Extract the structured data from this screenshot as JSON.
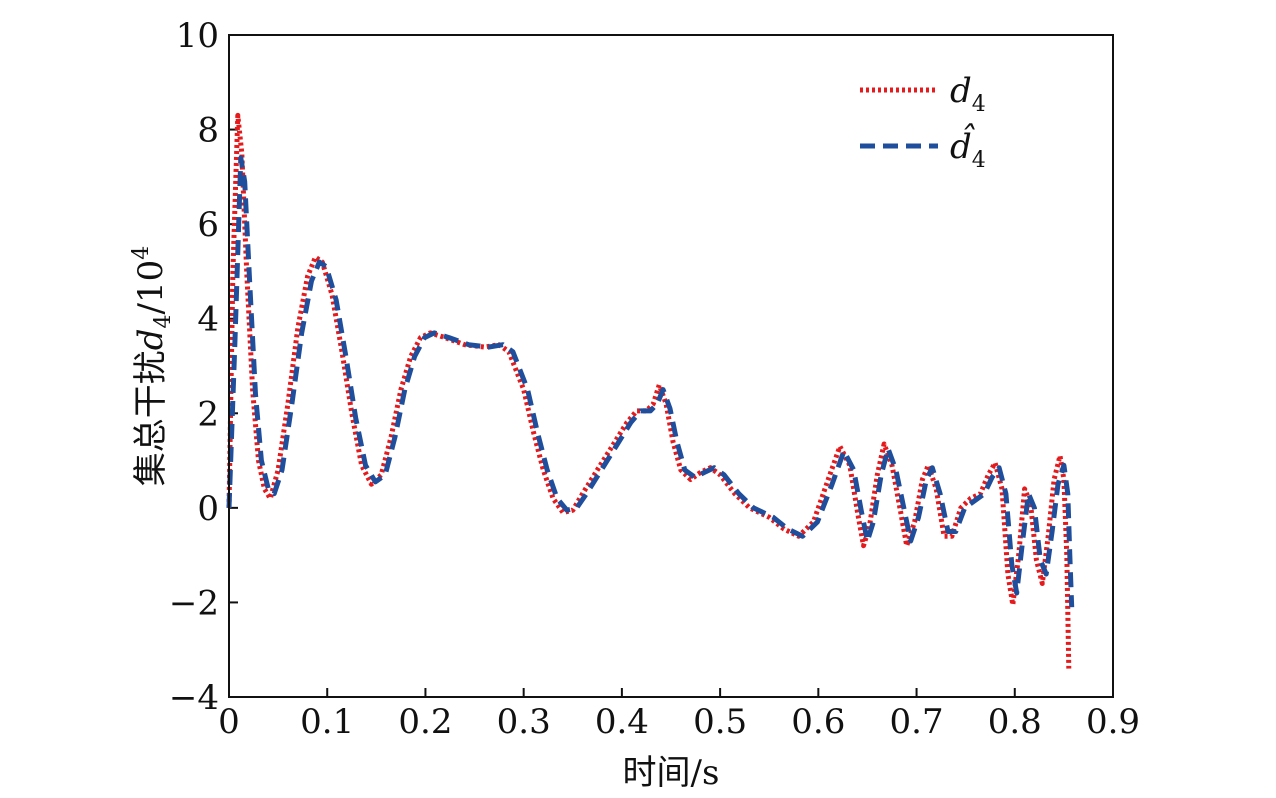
{
  "chart_data": {
    "type": "line",
    "title": "",
    "xlabel": "时间/s",
    "ylabel": {
      "prefix": "集总干扰",
      "symbol": "d",
      "subscript": "4",
      "suffix": "/10",
      "superscript": "4"
    },
    "xlim": [
      0,
      0.9
    ],
    "ylim": [
      -4,
      10
    ],
    "xticks": [
      "0",
      "0.1",
      "0.2",
      "0.3",
      "0.4",
      "0.5",
      "0.6",
      "0.7",
      "0.8",
      "0.9"
    ],
    "yticks": [
      "−4",
      "−2",
      "0",
      "2",
      "4",
      "6",
      "8",
      "10"
    ],
    "xtick_values": [
      0,
      0.1,
      0.2,
      0.3,
      0.4,
      0.5,
      0.6,
      0.7,
      0.8,
      0.9
    ],
    "ytick_values": [
      -4,
      -2,
      0,
      2,
      4,
      6,
      8,
      10
    ],
    "grid": false,
    "legend_position": "top-right",
    "series": [
      {
        "name": "d4",
        "legend_symbol": "d",
        "legend_sub": "4",
        "color": "#e41a1c",
        "style": "dotted",
        "points": [
          [
            0.0,
            0.0
          ],
          [
            0.004,
            5.0
          ],
          [
            0.009,
            8.3
          ],
          [
            0.013,
            7.5
          ],
          [
            0.018,
            5.0
          ],
          [
            0.024,
            2.5
          ],
          [
            0.03,
            1.0
          ],
          [
            0.036,
            0.4
          ],
          [
            0.042,
            0.2
          ],
          [
            0.05,
            0.8
          ],
          [
            0.06,
            2.2
          ],
          [
            0.07,
            3.8
          ],
          [
            0.08,
            4.9
          ],
          [
            0.088,
            5.3
          ],
          [
            0.095,
            5.2
          ],
          [
            0.105,
            4.5
          ],
          [
            0.115,
            3.3
          ],
          [
            0.125,
            2.0
          ],
          [
            0.135,
            0.9
          ],
          [
            0.145,
            0.5
          ],
          [
            0.155,
            0.7
          ],
          [
            0.165,
            1.5
          ],
          [
            0.175,
            2.5
          ],
          [
            0.185,
            3.2
          ],
          [
            0.195,
            3.6
          ],
          [
            0.205,
            3.7
          ],
          [
            0.22,
            3.6
          ],
          [
            0.24,
            3.45
          ],
          [
            0.26,
            3.4
          ],
          [
            0.275,
            3.45
          ],
          [
            0.285,
            3.3
          ],
          [
            0.3,
            2.5
          ],
          [
            0.31,
            1.6
          ],
          [
            0.32,
            0.8
          ],
          [
            0.33,
            0.2
          ],
          [
            0.34,
            -0.1
          ],
          [
            0.35,
            -0.05
          ],
          [
            0.36,
            0.3
          ],
          [
            0.375,
            0.8
          ],
          [
            0.39,
            1.3
          ],
          [
            0.405,
            1.8
          ],
          [
            0.415,
            2.05
          ],
          [
            0.425,
            2.05
          ],
          [
            0.432,
            2.2
          ],
          [
            0.438,
            2.6
          ],
          [
            0.445,
            2.2
          ],
          [
            0.452,
            1.4
          ],
          [
            0.46,
            0.8
          ],
          [
            0.47,
            0.6
          ],
          [
            0.48,
            0.75
          ],
          [
            0.49,
            0.85
          ],
          [
            0.5,
            0.7
          ],
          [
            0.515,
            0.3
          ],
          [
            0.53,
            0.0
          ],
          [
            0.55,
            -0.2
          ],
          [
            0.565,
            -0.45
          ],
          [
            0.58,
            -0.6
          ],
          [
            0.595,
            -0.3
          ],
          [
            0.61,
            0.6
          ],
          [
            0.622,
            1.3
          ],
          [
            0.632,
            0.9
          ],
          [
            0.64,
            -0.1
          ],
          [
            0.646,
            -0.8
          ],
          [
            0.652,
            -0.4
          ],
          [
            0.66,
            0.7
          ],
          [
            0.667,
            1.35
          ],
          [
            0.675,
            0.9
          ],
          [
            0.683,
            0.0
          ],
          [
            0.69,
            -0.8
          ],
          [
            0.698,
            -0.3
          ],
          [
            0.706,
            0.6
          ],
          [
            0.712,
            0.9
          ],
          [
            0.72,
            0.4
          ],
          [
            0.728,
            -0.6
          ],
          [
            0.736,
            -0.6
          ],
          [
            0.745,
            0.0
          ],
          [
            0.755,
            0.2
          ],
          [
            0.765,
            0.3
          ],
          [
            0.773,
            0.7
          ],
          [
            0.78,
            0.95
          ],
          [
            0.787,
            0.4
          ],
          [
            0.793,
            -1.4
          ],
          [
            0.798,
            -2.05
          ],
          [
            0.804,
            -1.0
          ],
          [
            0.81,
            0.4
          ],
          [
            0.816,
            0.1
          ],
          [
            0.822,
            -1.1
          ],
          [
            0.828,
            -1.6
          ],
          [
            0.834,
            -0.6
          ],
          [
            0.84,
            0.6
          ],
          [
            0.846,
            1.1
          ],
          [
            0.85,
            0.6
          ],
          [
            0.853,
            -1.0
          ],
          [
            0.855,
            -3.4
          ]
        ]
      },
      {
        "name": "d̂4",
        "legend_symbol": "d̂",
        "legend_sub": "4",
        "color": "#1f4e9c",
        "style": "dashed",
        "points": [
          [
            0.0,
            0.0
          ],
          [
            0.006,
            3.5
          ],
          [
            0.012,
            7.4
          ],
          [
            0.016,
            6.9
          ],
          [
            0.021,
            4.8
          ],
          [
            0.027,
            2.4
          ],
          [
            0.033,
            1.0
          ],
          [
            0.04,
            0.4
          ],
          [
            0.046,
            0.3
          ],
          [
            0.054,
            0.8
          ],
          [
            0.064,
            2.2
          ],
          [
            0.074,
            3.7
          ],
          [
            0.084,
            4.8
          ],
          [
            0.092,
            5.2
          ],
          [
            0.099,
            5.1
          ],
          [
            0.109,
            4.4
          ],
          [
            0.119,
            3.2
          ],
          [
            0.129,
            1.9
          ],
          [
            0.139,
            0.9
          ],
          [
            0.149,
            0.55
          ],
          [
            0.159,
            0.7
          ],
          [
            0.169,
            1.5
          ],
          [
            0.179,
            2.5
          ],
          [
            0.189,
            3.2
          ],
          [
            0.199,
            3.6
          ],
          [
            0.209,
            3.7
          ],
          [
            0.224,
            3.6
          ],
          [
            0.244,
            3.45
          ],
          [
            0.264,
            3.4
          ],
          [
            0.279,
            3.45
          ],
          [
            0.289,
            3.3
          ],
          [
            0.304,
            2.5
          ],
          [
            0.314,
            1.6
          ],
          [
            0.324,
            0.8
          ],
          [
            0.334,
            0.2
          ],
          [
            0.344,
            -0.05
          ],
          [
            0.354,
            0.0
          ],
          [
            0.364,
            0.3
          ],
          [
            0.379,
            0.8
          ],
          [
            0.394,
            1.3
          ],
          [
            0.409,
            1.8
          ],
          [
            0.419,
            2.05
          ],
          [
            0.429,
            2.05
          ],
          [
            0.436,
            2.2
          ],
          [
            0.442,
            2.5
          ],
          [
            0.449,
            2.1
          ],
          [
            0.456,
            1.4
          ],
          [
            0.464,
            0.8
          ],
          [
            0.474,
            0.65
          ],
          [
            0.484,
            0.75
          ],
          [
            0.494,
            0.85
          ],
          [
            0.504,
            0.7
          ],
          [
            0.519,
            0.3
          ],
          [
            0.534,
            0.0
          ],
          [
            0.554,
            -0.2
          ],
          [
            0.569,
            -0.45
          ],
          [
            0.584,
            -0.6
          ],
          [
            0.599,
            -0.3
          ],
          [
            0.614,
            0.5
          ],
          [
            0.626,
            1.2
          ],
          [
            0.636,
            0.8
          ],
          [
            0.644,
            -0.1
          ],
          [
            0.65,
            -0.7
          ],
          [
            0.656,
            -0.3
          ],
          [
            0.664,
            0.7
          ],
          [
            0.671,
            1.25
          ],
          [
            0.679,
            0.8
          ],
          [
            0.687,
            0.0
          ],
          [
            0.694,
            -0.7
          ],
          [
            0.702,
            -0.2
          ],
          [
            0.71,
            0.6
          ],
          [
            0.716,
            0.85
          ],
          [
            0.724,
            0.3
          ],
          [
            0.732,
            -0.5
          ],
          [
            0.74,
            -0.5
          ],
          [
            0.749,
            0.0
          ],
          [
            0.759,
            0.15
          ],
          [
            0.769,
            0.3
          ],
          [
            0.777,
            0.65
          ],
          [
            0.784,
            0.85
          ],
          [
            0.791,
            0.3
          ],
          [
            0.797,
            -1.2
          ],
          [
            0.802,
            -1.8
          ],
          [
            0.808,
            -0.7
          ],
          [
            0.814,
            0.3
          ],
          [
            0.82,
            0.0
          ],
          [
            0.826,
            -1.1
          ],
          [
            0.832,
            -1.4
          ],
          [
            0.838,
            -0.5
          ],
          [
            0.844,
            0.5
          ],
          [
            0.85,
            0.9
          ],
          [
            0.854,
            0.3
          ],
          [
            0.856,
            -1.0
          ],
          [
            0.858,
            -2.1
          ]
        ]
      }
    ]
  }
}
